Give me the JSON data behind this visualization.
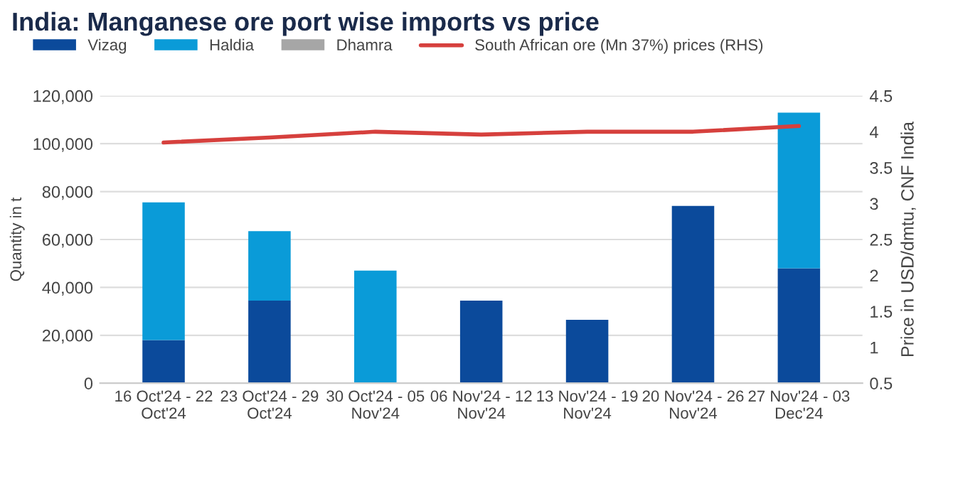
{
  "chart_data": {
    "type": "bar",
    "title": "India: Manganese ore port wise imports vs price",
    "ylabel": "Quantity in t",
    "y2label": "Price in USD/dmtu, CNF India",
    "categories": [
      "16 Oct'24 - 22 Oct'24",
      "23 Oct'24 - 29 Oct'24",
      "30 Oct'24 - 05 Nov'24",
      "06 Nov'24 - 12 Nov'24",
      "13 Nov'24 - 19 Nov'24",
      "20 Nov'24 - 26 Nov'24",
      "27 Nov'24 - 03 Dec'24"
    ],
    "stacked": true,
    "series": [
      {
        "name": "Vizag",
        "color": "#0b4a9b",
        "values": [
          18000,
          34500,
          0,
          34500,
          26500,
          74000,
          48000
        ]
      },
      {
        "name": "Haldia",
        "color": "#0a9bd8",
        "values": [
          57500,
          29000,
          47000,
          0,
          0,
          0,
          65000
        ]
      },
      {
        "name": "Dhamra",
        "color": "#a6a6a6",
        "values": [
          0,
          0,
          0,
          0,
          0,
          0,
          0
        ]
      },
      {
        "name": "South African ore (Mn 37%) prices (RHS)",
        "type": "line",
        "axis": "y2",
        "color": "#d6403d",
        "values": [
          3.85,
          3.92,
          4.0,
          3.96,
          4.0,
          4.0,
          4.08
        ]
      }
    ],
    "ylim": [
      0,
      120000
    ],
    "yticks": [
      {
        "value": 0,
        "label": "0"
      },
      {
        "value": 20000,
        "label": "20,000"
      },
      {
        "value": 40000,
        "label": "40,000"
      },
      {
        "value": 60000,
        "label": "60,000"
      },
      {
        "value": 80000,
        "label": "80,000"
      },
      {
        "value": 100000,
        "label": "100,000"
      },
      {
        "value": 120000,
        "label": "120,000"
      }
    ],
    "y2lim": [
      0.5,
      4.5
    ],
    "y2ticks": [
      0.5,
      1,
      1.5,
      2,
      2.5,
      3,
      3.5,
      4,
      4.5
    ],
    "grid": "y",
    "legend": "top left"
  }
}
